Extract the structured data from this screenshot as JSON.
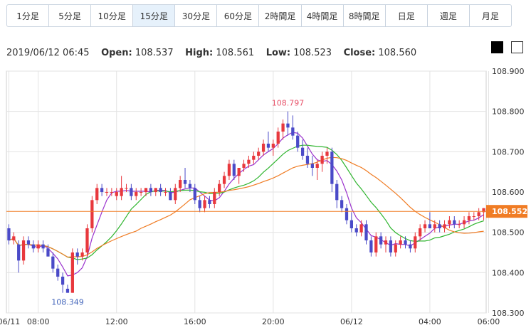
{
  "timeframes": [
    "1分足",
    "5分足",
    "10分足",
    "15分足",
    "30分足",
    "60分足",
    "2時間足",
    "4時間足",
    "8時間足",
    "日足",
    "週足",
    "月足"
  ],
  "active_timeframe": "15分足",
  "theme_buttons": {
    "black": "black-theme",
    "white": "white-theme"
  },
  "ohlc": {
    "datetime": "2019/06/12 06:45",
    "open_label": "Open:",
    "open": "108.537",
    "high_label": "High:",
    "high": "108.561",
    "low_label": "Low:",
    "low": "108.523",
    "close_label": "Close:",
    "close": "108.560"
  },
  "colors": {
    "up": "#e8383d",
    "down": "#4a4ac8",
    "ma_short": "#9a32cd",
    "ma_mid": "#2fb52f",
    "ma_long": "#f07c24",
    "price_line": "#f07c24",
    "grid": "#e3e3e3",
    "max_label": "#e8536a",
    "min_label": "#4466bb"
  },
  "chart_data": {
    "type": "candlestick",
    "ylim": [
      108.3,
      108.9
    ],
    "yticks": [
      "108.900",
      "108.800",
      "108.700",
      "108.600",
      "108.500",
      "108.400",
      "108.300"
    ],
    "xticks": [
      {
        "i": 0,
        "label": "06/11"
      },
      {
        "i": 6,
        "label": "08:00"
      },
      {
        "i": 22,
        "label": "12:00"
      },
      {
        "i": 38,
        "label": "16:00"
      },
      {
        "i": 54,
        "label": "20:00"
      },
      {
        "i": 70,
        "label": "06/12"
      },
      {
        "i": 86,
        "label": "04:00"
      },
      {
        "i": 98,
        "label": "06:00"
      }
    ],
    "current_price": "108.552",
    "max_label": {
      "i": 57,
      "value": "108.797"
    },
    "min_label": {
      "i": 12,
      "value": "108.349"
    },
    "candles": [
      [
        108.51,
        108.52,
        108.47,
        108.48
      ],
      [
        108.48,
        108.5,
        108.47,
        108.49
      ],
      [
        108.47,
        108.48,
        108.4,
        108.43
      ],
      [
        108.43,
        108.49,
        108.42,
        108.48
      ],
      [
        108.48,
        108.49,
        108.46,
        108.47
      ],
      [
        108.47,
        108.48,
        108.45,
        108.46
      ],
      [
        108.46,
        108.48,
        108.45,
        108.47
      ],
      [
        108.47,
        108.48,
        108.45,
        108.46
      ],
      [
        108.46,
        108.47,
        108.44,
        108.44
      ],
      [
        108.44,
        108.45,
        108.4,
        108.41
      ],
      [
        108.41,
        108.42,
        108.38,
        108.39
      ],
      [
        108.39,
        108.4,
        108.35,
        108.37
      ],
      [
        108.36,
        108.37,
        108.35,
        108.35
      ],
      [
        108.35,
        108.46,
        108.35,
        108.45
      ],
      [
        108.45,
        108.46,
        108.42,
        108.44
      ],
      [
        108.44,
        108.46,
        108.43,
        108.45
      ],
      [
        108.45,
        108.52,
        108.44,
        108.51
      ],
      [
        108.51,
        108.59,
        108.5,
        108.58
      ],
      [
        108.58,
        108.62,
        108.57,
        108.61
      ],
      [
        108.61,
        108.62,
        108.59,
        108.6
      ],
      [
        108.6,
        108.61,
        108.59,
        108.6
      ],
      [
        108.6,
        108.61,
        108.59,
        108.6
      ],
      [
        108.59,
        108.61,
        108.58,
        108.6
      ],
      [
        108.59,
        108.64,
        108.58,
        108.61
      ],
      [
        108.61,
        108.62,
        108.6,
        108.61
      ],
      [
        108.61,
        108.62,
        108.58,
        108.59
      ],
      [
        108.59,
        108.61,
        108.58,
        108.6
      ],
      [
        108.6,
        108.61,
        108.59,
        108.6
      ],
      [
        108.6,
        108.61,
        108.59,
        108.61
      ],
      [
        108.61,
        108.62,
        108.59,
        108.6
      ],
      [
        108.6,
        108.61,
        108.59,
        108.61
      ],
      [
        108.61,
        108.62,
        108.59,
        108.6
      ],
      [
        108.6,
        108.61,
        108.59,
        108.6
      ],
      [
        108.6,
        108.61,
        108.58,
        108.58
      ],
      [
        108.58,
        108.62,
        108.57,
        108.61
      ],
      [
        108.61,
        108.64,
        108.6,
        108.63
      ],
      [
        108.63,
        108.66,
        108.61,
        108.62
      ],
      [
        108.62,
        108.63,
        108.6,
        108.61
      ],
      [
        108.61,
        108.62,
        108.57,
        108.58
      ],
      [
        108.58,
        108.59,
        108.55,
        108.56
      ],
      [
        108.56,
        108.59,
        108.55,
        108.58
      ],
      [
        108.58,
        108.59,
        108.56,
        108.57
      ],
      [
        108.57,
        108.61,
        108.56,
        108.6
      ],
      [
        108.6,
        108.63,
        108.59,
        108.62
      ],
      [
        108.62,
        108.65,
        108.61,
        108.64
      ],
      [
        108.64,
        108.68,
        108.63,
        108.67
      ],
      [
        108.67,
        108.68,
        108.63,
        108.64
      ],
      [
        108.64,
        108.66,
        108.62,
        108.66
      ],
      [
        108.66,
        108.68,
        108.65,
        108.67
      ],
      [
        108.67,
        108.69,
        108.66,
        108.68
      ],
      [
        108.68,
        108.7,
        108.67,
        108.69
      ],
      [
        108.69,
        108.71,
        108.68,
        108.7
      ],
      [
        108.7,
        108.73,
        108.69,
        108.72
      ],
      [
        108.72,
        108.75,
        108.7,
        108.71
      ],
      [
        108.71,
        108.73,
        108.69,
        108.72
      ],
      [
        108.72,
        108.76,
        108.71,
        108.75
      ],
      [
        108.75,
        108.78,
        108.73,
        108.77
      ],
      [
        108.77,
        108.8,
        108.74,
        108.76
      ],
      [
        108.76,
        108.79,
        108.73,
        108.74
      ],
      [
        108.74,
        108.75,
        108.7,
        108.71
      ],
      [
        108.71,
        108.73,
        108.68,
        108.69
      ],
      [
        108.69,
        108.71,
        108.66,
        108.67
      ],
      [
        108.67,
        108.69,
        108.64,
        108.66
      ],
      [
        108.66,
        108.68,
        108.63,
        108.67
      ],
      [
        108.67,
        108.7,
        108.65,
        108.69
      ],
      [
        108.69,
        108.71,
        108.67,
        108.7
      ],
      [
        108.7,
        108.71,
        108.6,
        108.62
      ],
      [
        108.62,
        108.63,
        108.56,
        108.58
      ],
      [
        108.58,
        108.59,
        108.55,
        108.56
      ],
      [
        108.56,
        108.57,
        108.52,
        108.53
      ],
      [
        108.53,
        108.55,
        108.5,
        108.51
      ],
      [
        108.51,
        108.52,
        108.49,
        108.5
      ],
      [
        108.5,
        108.53,
        108.49,
        108.52
      ],
      [
        108.52,
        108.53,
        108.47,
        108.48
      ],
      [
        108.48,
        108.49,
        108.44,
        108.45
      ],
      [
        108.45,
        108.5,
        108.44,
        108.49
      ],
      [
        108.49,
        108.5,
        108.46,
        108.47
      ],
      [
        108.47,
        108.49,
        108.45,
        108.48
      ],
      [
        108.48,
        108.49,
        108.44,
        108.45
      ],
      [
        108.45,
        108.48,
        108.44,
        108.47
      ],
      [
        108.47,
        108.49,
        108.46,
        108.48
      ],
      [
        108.48,
        108.49,
        108.46,
        108.47
      ],
      [
        108.47,
        108.48,
        108.45,
        108.46
      ],
      [
        108.46,
        108.5,
        108.45,
        108.49
      ],
      [
        108.49,
        108.52,
        108.48,
        108.51
      ],
      [
        108.51,
        108.53,
        108.5,
        108.52
      ],
      [
        108.52,
        108.55,
        108.51,
        108.51
      ],
      [
        108.51,
        108.53,
        108.5,
        108.52
      ],
      [
        108.52,
        108.53,
        108.5,
        108.51
      ],
      [
        108.51,
        108.53,
        108.5,
        108.52
      ],
      [
        108.52,
        108.54,
        108.51,
        108.53
      ],
      [
        108.53,
        108.54,
        108.51,
        108.52
      ],
      [
        108.52,
        108.53,
        108.51,
        108.52
      ],
      [
        108.52,
        108.54,
        108.51,
        108.53
      ],
      [
        108.53,
        108.55,
        108.52,
        108.54
      ],
      [
        108.54,
        108.55,
        108.53,
        108.54
      ],
      [
        108.54,
        108.56,
        108.53,
        108.55
      ],
      [
        108.55,
        108.56,
        108.53,
        108.56
      ]
    ]
  }
}
